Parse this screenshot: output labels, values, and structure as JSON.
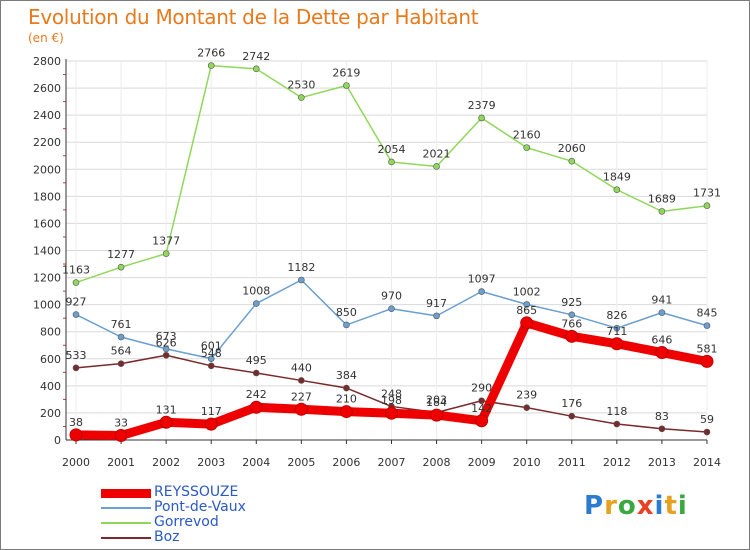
{
  "header": {
    "title": "Evolution du Montant de la Dette par Habitant",
    "unit": "(en €)"
  },
  "logo": {
    "text": "Proxiti"
  },
  "colors": {
    "title": "#e87a1e",
    "grid": "#d9d9d9",
    "axis": "#333333",
    "legend_text": "#2a59c4"
  },
  "chart_data": {
    "type": "line",
    "title": "Evolution du Montant de la Dette par Habitant",
    "ylabel": "(en €)",
    "xlabel": "",
    "x": [
      "2000",
      "2001",
      "2002",
      "2003",
      "2004",
      "2005",
      "2006",
      "2007",
      "2008",
      "2009",
      "2010",
      "2011",
      "2012",
      "2013",
      "2014"
    ],
    "ylim": [
      0,
      2800
    ],
    "yticks": [
      0,
      200,
      400,
      600,
      800,
      1000,
      1200,
      1400,
      1600,
      1800,
      2000,
      2200,
      2400,
      2600,
      2800
    ],
    "grid": true,
    "legend_position": "bottom-left",
    "series": [
      {
        "name": "REYSSOUZE",
        "color": "#ee0000",
        "values": [
          38,
          33,
          131,
          117,
          242,
          227,
          210,
          198,
          184,
          142,
          865,
          766,
          711,
          646,
          581
        ]
      },
      {
        "name": "Pont-de-Vaux",
        "color": "#6a9fd0",
        "values": [
          927,
          761,
          673,
          601,
          1008,
          1182,
          850,
          970,
          917,
          1097,
          1002,
          925,
          826,
          941,
          845
        ]
      },
      {
        "name": "Gorrevod",
        "color": "#8fd85a",
        "values": [
          1163,
          1277,
          1377,
          2766,
          2742,
          2530,
          2619,
          2054,
          2021,
          2379,
          2160,
          2060,
          1849,
          1689,
          1731
        ]
      },
      {
        "name": "Boz",
        "color": "#7a2a2a",
        "values": [
          533,
          564,
          626,
          548,
          495,
          440,
          384,
          248,
          203,
          290,
          239,
          176,
          118,
          83,
          59
        ]
      }
    ]
  }
}
